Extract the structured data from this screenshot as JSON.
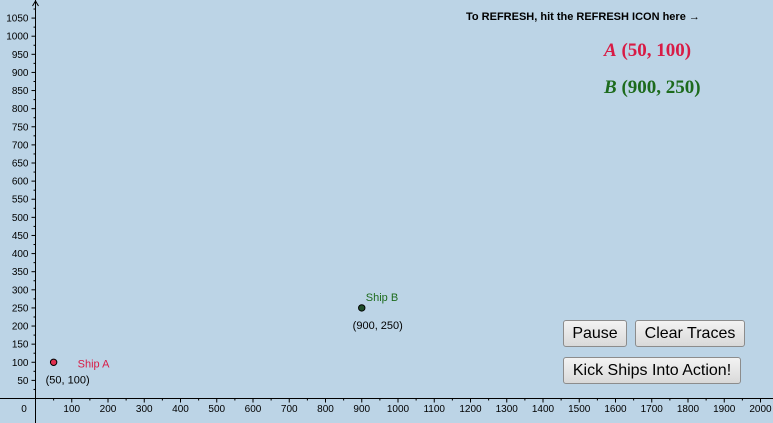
{
  "refresh_note": "To REFRESH, hit the REFRESH ICON here →",
  "axes": {
    "x_ticks": [
      0,
      100,
      200,
      300,
      400,
      500,
      600,
      700,
      800,
      900,
      1000,
      1100,
      1200,
      1300,
      1400,
      1500,
      1600,
      1700,
      1800,
      1900,
      2000
    ],
    "y_ticks": [
      50,
      100,
      150,
      200,
      250,
      300,
      350,
      400,
      450,
      500,
      550,
      600,
      650,
      700,
      750,
      800,
      850,
      900,
      950,
      1000,
      1050
    ],
    "x_range": [
      0,
      2000
    ],
    "y_range": [
      0,
      1100
    ]
  },
  "ships": [
    {
      "key": "a",
      "name": "Ship A",
      "x": 50,
      "y": 100,
      "coord_text": "(50, 100)",
      "color": "#d81b45",
      "fill": "#e0304f"
    },
    {
      "key": "b",
      "name": "Ship B",
      "x": 900,
      "y": 250,
      "coord_text": "(900, 250)",
      "color": "#1d6b1d",
      "fill": "#1f4f2a"
    }
  ],
  "labels": {
    "a_name": "A",
    "a_value": "(50, 100)",
    "b_name": "B",
    "b_value": "(900, 250)"
  },
  "buttons": {
    "pause": "Pause",
    "clear_traces": "Clear Traces",
    "kick": "Kick Ships Into Action!"
  }
}
